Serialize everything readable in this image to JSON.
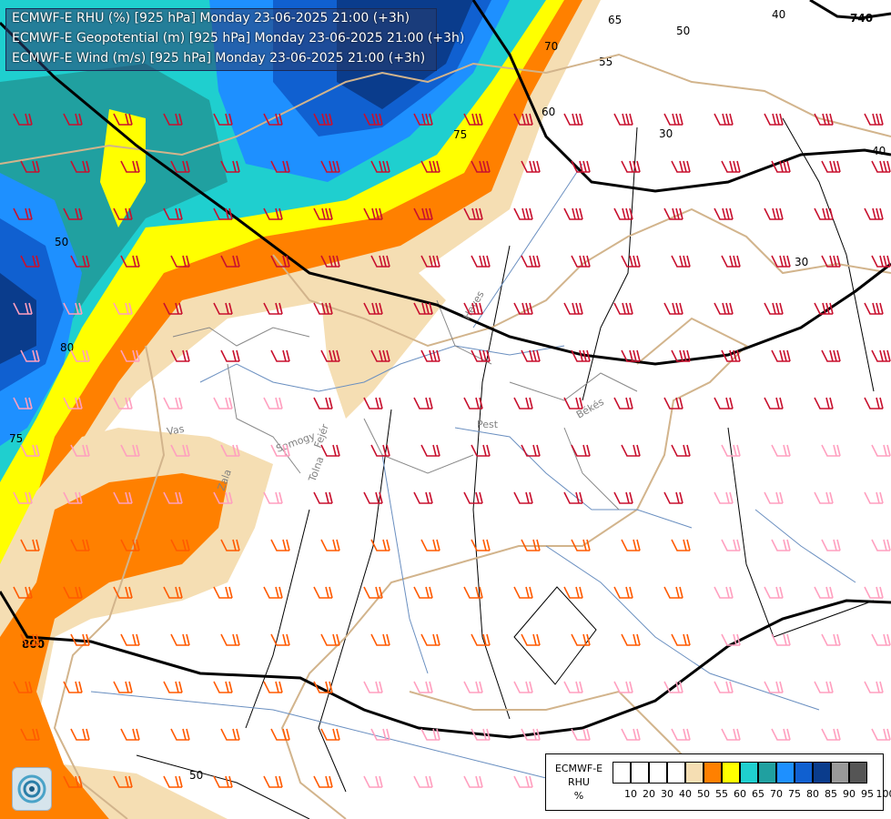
{
  "title_lines": [
    "ECMWF-E RHU (%) [925 hPa] Monday 23-06-2025 21:00 (+3h)",
    "ECMWF-E Geopotential (m) [925 hPa] Monday 23-06-2025 21:00 (+3h)",
    "ECMWF-E Wind (m/s) [925 hPa] Monday 23-06-2025 21:00 (+3h)"
  ],
  "legend": {
    "title_lines": [
      "ECMWF-E",
      "RHU",
      "%"
    ],
    "ticks": [
      "10",
      "20",
      "30",
      "40",
      "50",
      "55",
      "60",
      "65",
      "70",
      "75",
      "80",
      "85",
      "90",
      "95",
      "100"
    ],
    "colors": [
      "#ffffff",
      "#ffffff",
      "#ffffff",
      "#ffffff",
      "#f5deb3",
      "#ff8000",
      "#ffff00",
      "#1fcfcf",
      "#20a0a0",
      "#1e90ff",
      "#1060d0",
      "#0a3c8c",
      "#999999",
      "#555555"
    ]
  },
  "geopotential_labels": [
    "740",
    "800"
  ],
  "rhu_contour_labels": [
    "40",
    "50",
    "60",
    "65",
    "70",
    "75",
    "80",
    "75",
    "55",
    "50",
    "30",
    "30",
    "50",
    "40"
  ],
  "place_labels": [
    "Vas",
    "Zala",
    "Somogy",
    "Tolna",
    "Fejér",
    "Pest",
    "Heves",
    "Békés"
  ],
  "colors": {
    "wind_strong": "#c8102e",
    "wind_medium": "#ff5a00",
    "wind_light": "#ff9fbf",
    "border": "#d2b48c",
    "river": "#6a8fc0",
    "geopotential": "#000000"
  }
}
